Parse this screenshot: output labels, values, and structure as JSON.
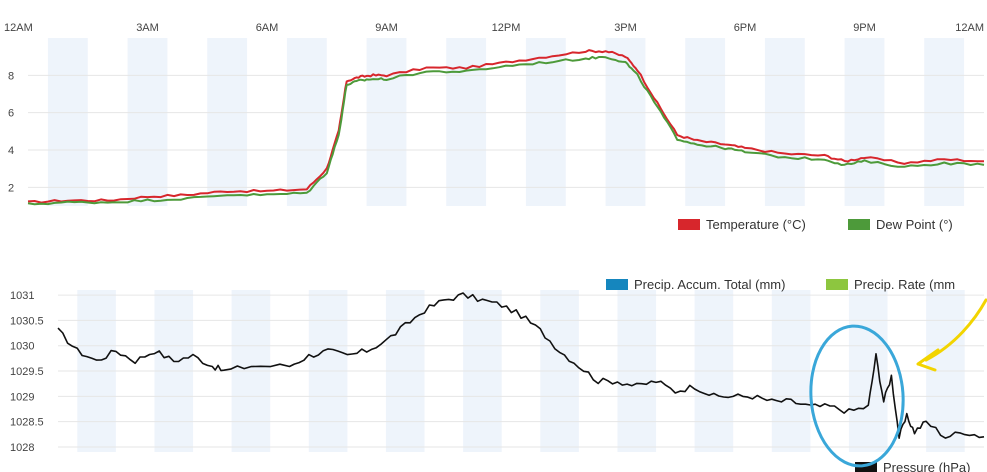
{
  "chart_data": [
    {
      "type": "line",
      "x_ticks": [
        "12AM",
        "3AM",
        "6AM",
        "9AM",
        "12PM",
        "3PM",
        "6PM",
        "9PM",
        "12AM"
      ],
      "y_ticks": [
        "2",
        "4",
        "6",
        "8"
      ],
      "ylim": [
        1,
        10
      ],
      "xlim": [
        0,
        24
      ],
      "grid": "alternating vertical bands (every hour shaded), horizontal gridlines",
      "legend_position": "bottom-right",
      "series": [
        {
          "name": "Temperature (°C)",
          "color": "#d7262c",
          "x": [
            0,
            1,
            2,
            3,
            4,
            5,
            6,
            7,
            7.5,
            7.8,
            8.0,
            8.3,
            8.6,
            9,
            10,
            11,
            12,
            13,
            14,
            14.5,
            15,
            15.3,
            15.8,
            16.3,
            16.8,
            17.5,
            18,
            19,
            20,
            20.5,
            21,
            22,
            23,
            24
          ],
          "values": [
            1.2,
            1.3,
            1.3,
            1.5,
            1.6,
            1.8,
            1.8,
            1.9,
            3.0,
            5.0,
            7.7,
            7.9,
            8.0,
            8.0,
            8.4,
            8.4,
            8.7,
            9.0,
            9.3,
            9.3,
            9.0,
            8.3,
            6.5,
            4.8,
            4.5,
            4.3,
            4.1,
            3.8,
            3.7,
            3.4,
            3.6,
            3.3,
            3.5,
            3.4
          ]
        },
        {
          "name": "Dew Point (°)",
          "color": "#4d9a3a",
          "x": [
            0,
            1,
            2,
            3,
            4,
            5,
            6,
            7,
            7.5,
            7.8,
            8.0,
            8.3,
            8.6,
            9,
            10,
            11,
            12,
            13,
            14,
            14.5,
            15,
            15.3,
            15.8,
            16.3,
            16.8,
            17.5,
            18,
            19,
            20,
            20.5,
            21,
            22,
            23,
            24
          ],
          "values": [
            1.1,
            1.2,
            1.2,
            1.3,
            1.4,
            1.6,
            1.6,
            1.7,
            2.8,
            4.8,
            7.5,
            7.7,
            7.8,
            7.8,
            8.2,
            8.2,
            8.5,
            8.7,
            8.9,
            9.0,
            8.7,
            8.0,
            6.3,
            4.6,
            4.3,
            4.1,
            3.9,
            3.6,
            3.5,
            3.2,
            3.4,
            3.1,
            3.3,
            3.2
          ]
        }
      ]
    },
    {
      "type": "line",
      "y_ticks": [
        "1031",
        "1030.5",
        "1030",
        "1029.5",
        "1029",
        "1028.5",
        "1028"
      ],
      "ylim": [
        1027.9,
        1031.1
      ],
      "xlim": [
        0,
        24
      ],
      "grid": "alternating vertical bands (every hour shaded), horizontal gridlines",
      "legend_position": "top-right and bottom-right",
      "legend": [
        {
          "name": "Precip. Accum. Total (mm)",
          "color": "#1586be"
        },
        {
          "name": "Precip. Rate (mm",
          "color": "#8dc63f"
        },
        {
          "name": "Pressure (hPa)",
          "color": "#111111"
        }
      ],
      "series": [
        {
          "name": "Pressure (hPa)",
          "color": "#111111",
          "x": [
            0,
            0.5,
            1,
            1.5,
            2,
            2.5,
            3,
            3.5,
            4,
            4.3,
            5,
            6,
            6.5,
            7,
            7.5,
            8,
            8.5,
            9,
            9.5,
            10,
            10.5,
            11,
            11.5,
            12,
            12.5,
            13,
            13.5,
            14,
            14.5,
            15,
            15.5,
            16,
            16.5,
            17,
            17.5,
            18,
            18.5,
            19,
            19.5,
            20,
            20.5,
            21,
            21.2,
            21.4,
            21.6,
            21.8,
            22,
            22.2,
            22.5,
            23,
            23.5,
            24
          ],
          "values": [
            1030.3,
            1029.9,
            1029.7,
            1029.9,
            1029.7,
            1029.9,
            1029.7,
            1029.8,
            1029.6,
            1029.5,
            1029.6,
            1029.6,
            1029.8,
            1029.9,
            1029.8,
            1029.9,
            1030.1,
            1030.4,
            1030.7,
            1030.9,
            1031.0,
            1030.9,
            1030.8,
            1030.6,
            1030.3,
            1029.9,
            1029.6,
            1029.3,
            1029.3,
            1029.2,
            1029.3,
            1029.1,
            1029.2,
            1029.0,
            1029.0,
            1029.0,
            1028.9,
            1028.9,
            1028.8,
            1028.8,
            1028.7,
            1028.8,
            1029.8,
            1028.9,
            1029.4,
            1028.2,
            1028.6,
            1028.3,
            1028.5,
            1028.2,
            1028.3,
            1028.2
          ]
        }
      ]
    }
  ],
  "annotations": {
    "circle_color": "#3aa7d9",
    "arrow_color": "#f2d400"
  }
}
